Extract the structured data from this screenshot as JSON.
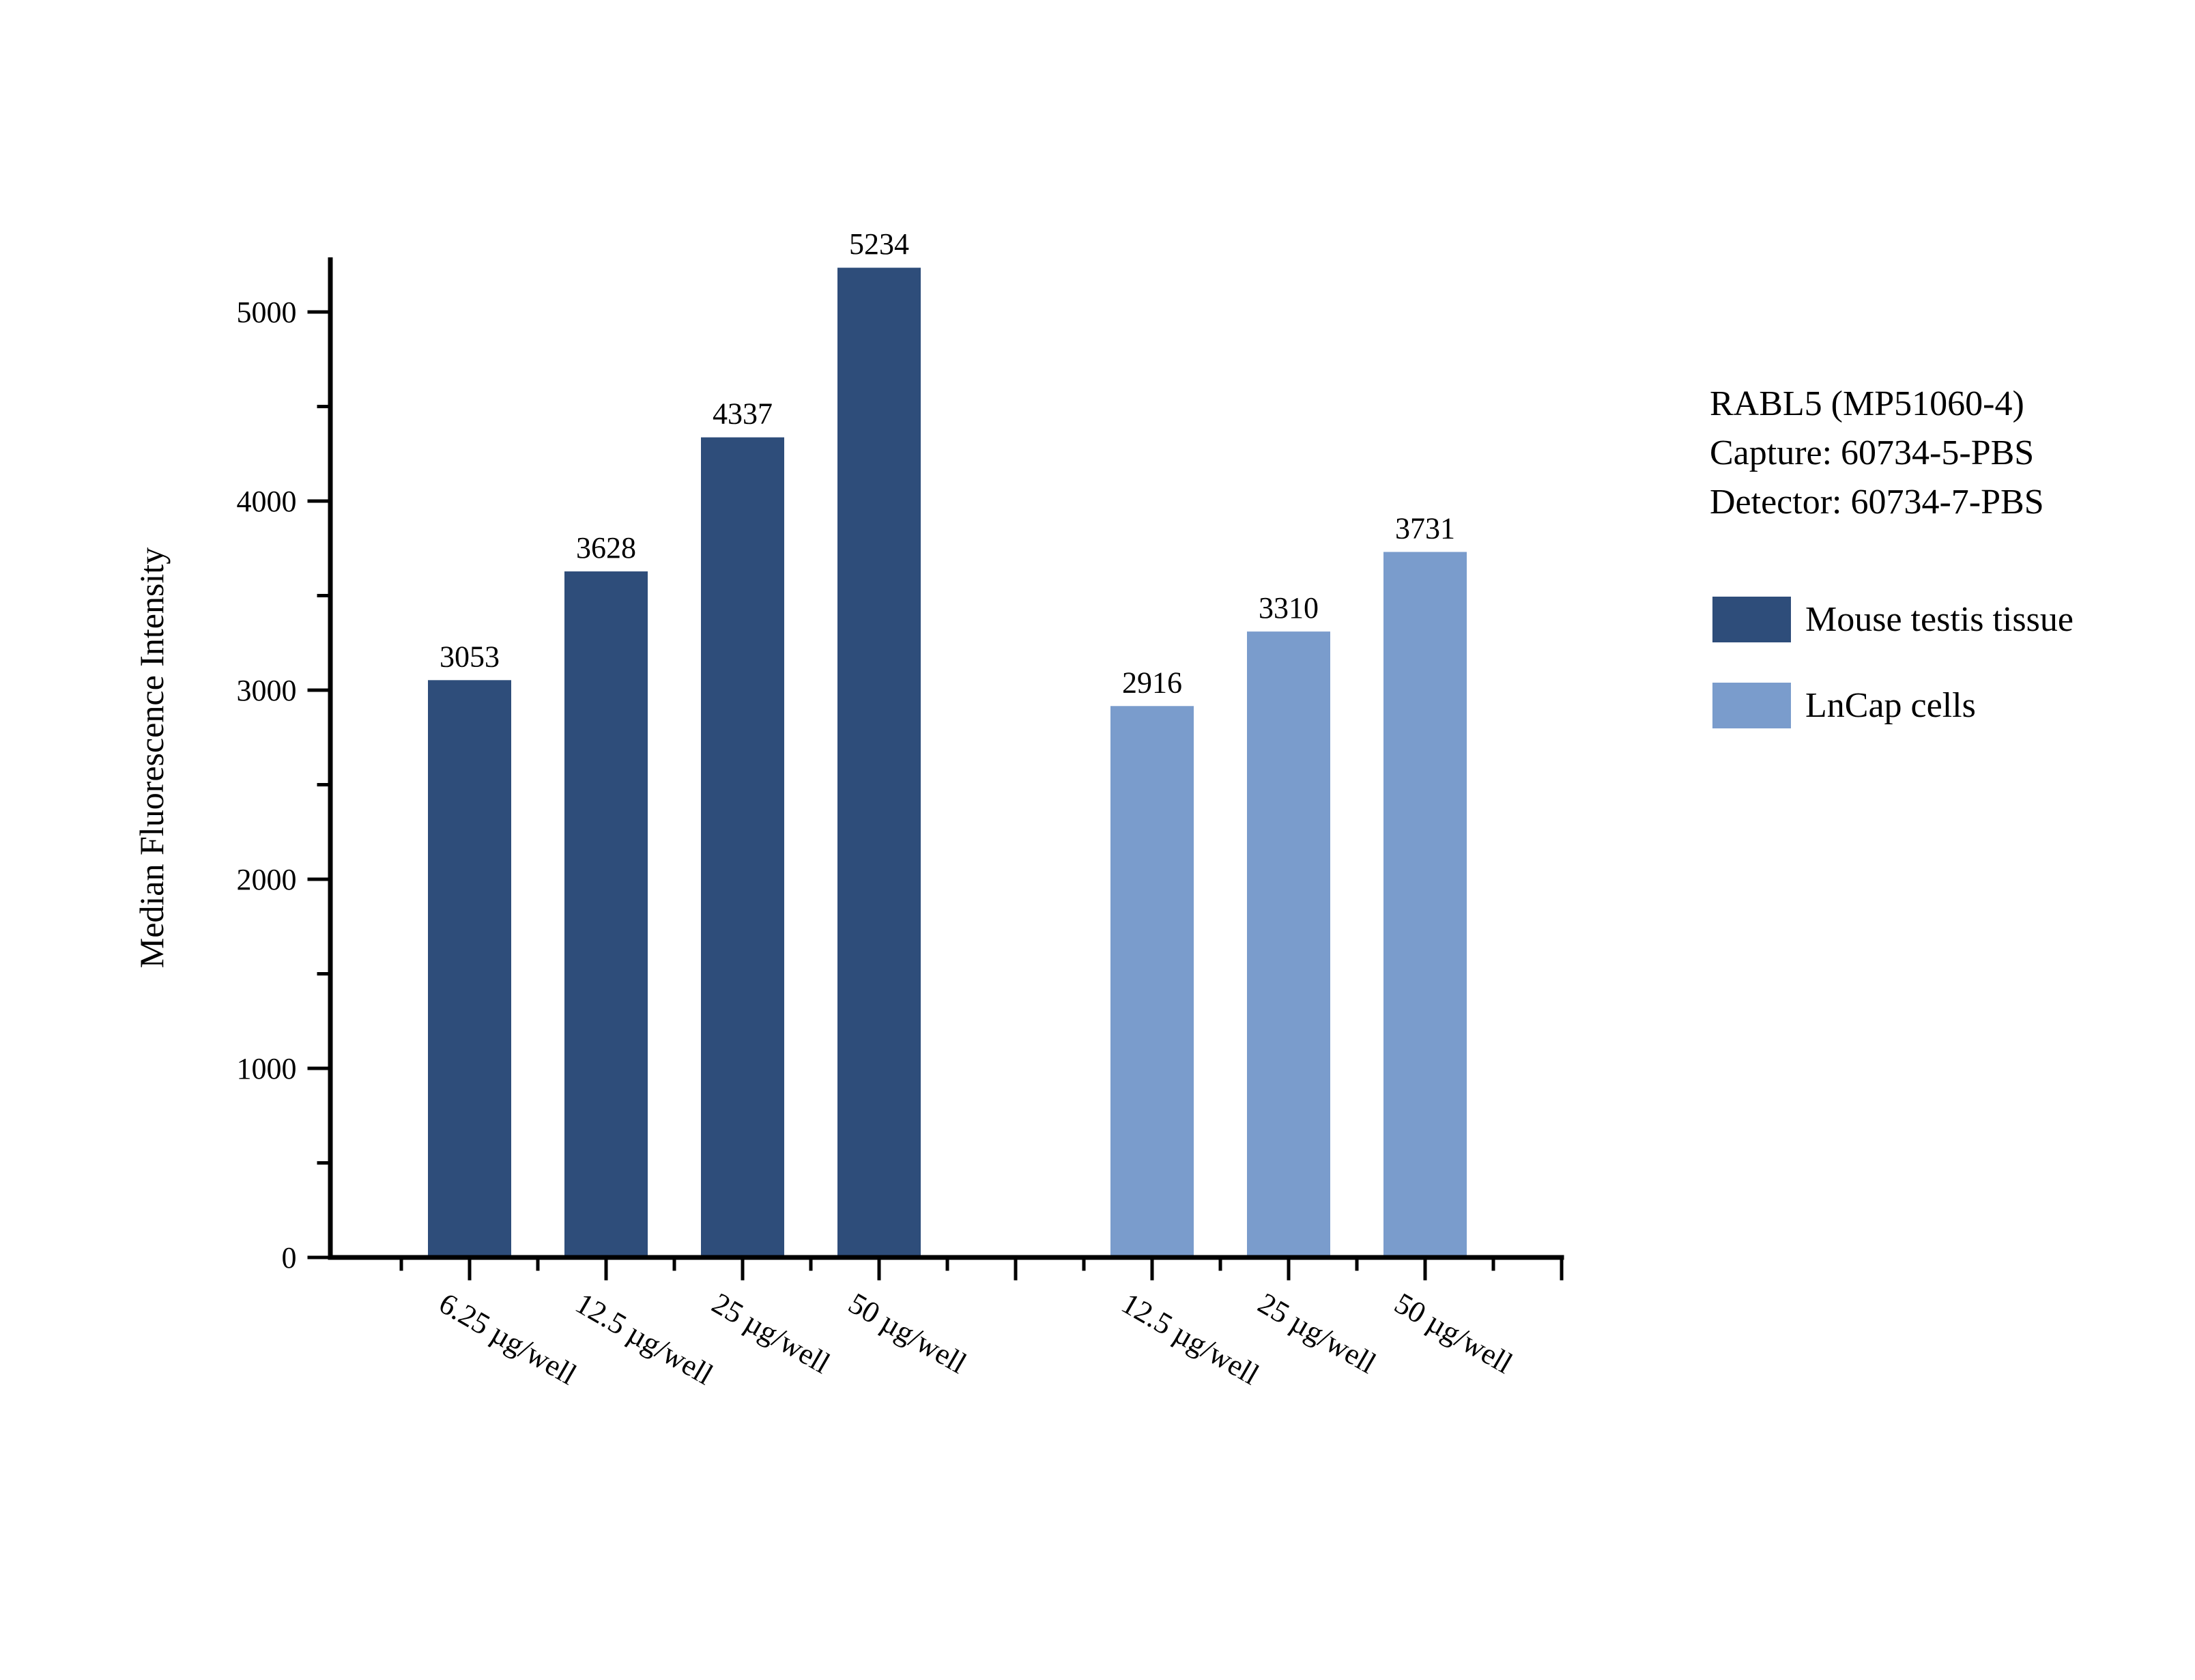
{
  "figure": {
    "background": "#ffffff"
  },
  "chart_data": {
    "type": "bar",
    "title": "",
    "xlabel": "",
    "ylabel": "Median Fluorescence Intensity",
    "ylim": [
      0,
      5280
    ],
    "y_major_ticks": [
      0,
      1000,
      2000,
      3000,
      4000,
      5000
    ],
    "y_minor_ticks": [
      500,
      1500,
      2500,
      3500,
      4500
    ],
    "grid": false,
    "bar_value_labels": true,
    "legend_position": "right",
    "group_gap_slots": 1,
    "series": [
      {
        "name": "Mouse testis tissue",
        "color": "#2e4d7a",
        "categories": [
          "6.25 µg/well",
          "12.5 µg/well",
          "25 µg/well",
          "50 µg/well"
        ],
        "values": [
          3053,
          3628,
          4337,
          5234
        ]
      },
      {
        "name": "LnCap cells",
        "color": "#7a9ccc",
        "categories": [
          "12.5 µg/well",
          "25 µg/well",
          "50 µg/well"
        ],
        "values": [
          2916,
          3310,
          3731
        ]
      }
    ],
    "annotation": {
      "line1": "RABL5 (MP51060-4)",
      "line2": "Capture: 60734-5-PBS",
      "line3": "Detector: 60734-7-PBS"
    }
  }
}
